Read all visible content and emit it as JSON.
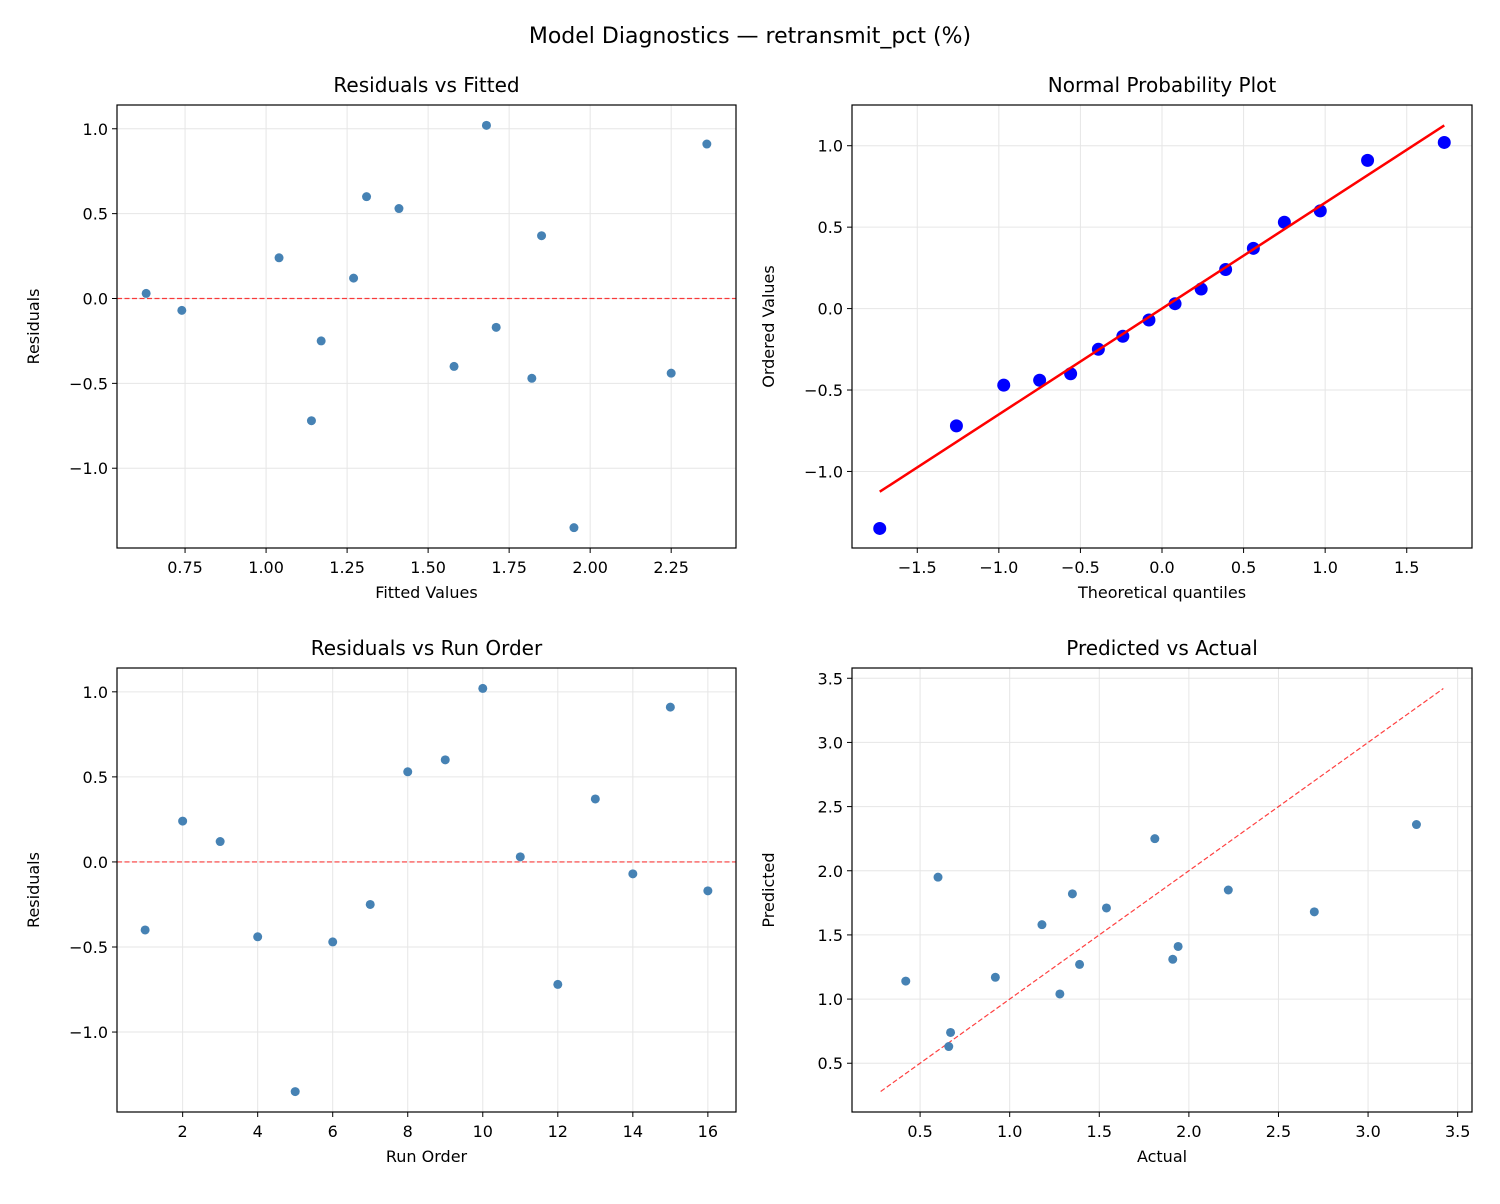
{
  "figure_title": "Model Diagnostics — retransmit_pct (%)",
  "chart_data": [
    {
      "id": "resid-fitted",
      "type": "scatter",
      "title": "Residuals vs Fitted",
      "xlabel": "Fitted Values",
      "ylabel": "Residuals",
      "xlim": [
        0.54,
        2.45
      ],
      "ylim": [
        -1.47,
        1.14
      ],
      "xticks": [
        0.75,
        1.0,
        1.25,
        1.5,
        1.75,
        2.0,
        2.25
      ],
      "xtick_labels": [
        "0.75",
        "1.00",
        "1.25",
        "1.50",
        "1.75",
        "2.00",
        "2.25"
      ],
      "yticks": [
        -1.0,
        -0.5,
        0.0,
        0.5,
        1.0
      ],
      "ytick_labels": [
        "−1.0",
        "−0.5",
        "0.0",
        "0.5",
        "1.0"
      ],
      "grid": true,
      "x": [
        1.58,
        1.04,
        1.27,
        2.25,
        1.95,
        1.82,
        1.17,
        1.41,
        1.31,
        1.68,
        0.63,
        1.14,
        1.85,
        0.74,
        2.36,
        1.71
      ],
      "y": [
        -0.4,
        0.24,
        0.12,
        -0.44,
        -1.35,
        -0.47,
        -0.25,
        0.53,
        0.6,
        1.02,
        0.03,
        -0.72,
        0.37,
        -0.07,
        0.91,
        -0.17
      ],
      "point_color": "#4682b4",
      "reference_line": {
        "kind": "horizontal",
        "y": 0,
        "style": "dashed",
        "color": "#ff0000"
      }
    },
    {
      "id": "normal-prob",
      "type": "scatter",
      "title": "Normal Probability Plot",
      "xlabel": "Theoretical quantiles",
      "ylabel": "Ordered Values",
      "xlim": [
        -1.9,
        1.9
      ],
      "ylim": [
        -1.47,
        1.25
      ],
      "xticks": [
        -1.5,
        -1.0,
        -0.5,
        0.0,
        0.5,
        1.0,
        1.5
      ],
      "xtick_labels": [
        "−1.5",
        "−1.0",
        "−0.5",
        "0.0",
        "0.5",
        "1.0",
        "1.5"
      ],
      "yticks": [
        -1.0,
        -0.5,
        0.0,
        0.5,
        1.0
      ],
      "ytick_labels": [
        "−1.0",
        "−0.5",
        "0.0",
        "0.5",
        "1.0"
      ],
      "grid": true,
      "x": [
        -1.73,
        -1.26,
        -0.97,
        -0.75,
        -0.56,
        -0.39,
        -0.24,
        -0.08,
        0.08,
        0.24,
        0.39,
        0.56,
        0.75,
        0.97,
        1.26,
        1.73
      ],
      "y": [
        -1.35,
        -0.72,
        -0.47,
        -0.44,
        -0.4,
        -0.25,
        -0.17,
        -0.07,
        0.03,
        0.12,
        0.24,
        0.37,
        0.53,
        0.6,
        0.91,
        1.02
      ],
      "point_color": "#0000ff",
      "reference_line": {
        "kind": "fit",
        "slope": 0.65,
        "intercept": 0.0,
        "x_range": [
          -1.73,
          1.73
        ],
        "style": "solid",
        "color": "#ff0000"
      }
    },
    {
      "id": "resid-order",
      "type": "scatter",
      "title": "Residuals vs Run Order",
      "xlabel": "Run Order",
      "ylabel": "Residuals",
      "xlim": [
        0.25,
        16.75
      ],
      "ylim": [
        -1.47,
        1.14
      ],
      "xticks": [
        2,
        4,
        6,
        8,
        10,
        12,
        14,
        16
      ],
      "xtick_labels": [
        "2",
        "4",
        "6",
        "8",
        "10",
        "12",
        "14",
        "16"
      ],
      "yticks": [
        -1.0,
        -0.5,
        0.0,
        0.5,
        1.0
      ],
      "ytick_labels": [
        "−1.0",
        "−0.5",
        "0.0",
        "0.5",
        "1.0"
      ],
      "grid": true,
      "x": [
        1,
        2,
        3,
        4,
        5,
        6,
        7,
        8,
        9,
        10,
        11,
        12,
        13,
        14,
        15,
        16
      ],
      "y": [
        -0.4,
        0.24,
        0.12,
        -0.44,
        -1.35,
        -0.47,
        -0.25,
        0.53,
        0.6,
        1.02,
        0.03,
        -0.72,
        0.37,
        -0.07,
        0.91,
        -0.17
      ],
      "point_color": "#4682b4",
      "reference_line": {
        "kind": "horizontal",
        "y": 0,
        "style": "dashed",
        "color": "#ff0000"
      }
    },
    {
      "id": "pred-actual",
      "type": "scatter",
      "title": "Predicted vs Actual",
      "xlabel": "Actual",
      "ylabel": "Predicted",
      "xlim": [
        0.12,
        3.58
      ],
      "ylim": [
        0.12,
        3.58
      ],
      "xticks": [
        0.5,
        1.0,
        1.5,
        2.0,
        2.5,
        3.0,
        3.5
      ],
      "xtick_labels": [
        "0.5",
        "1.0",
        "1.5",
        "2.0",
        "2.5",
        "3.0",
        "3.5"
      ],
      "yticks": [
        0.5,
        1.0,
        1.5,
        2.0,
        2.5,
        3.0,
        3.5
      ],
      "ytick_labels": [
        "0.5",
        "1.0",
        "1.5",
        "2.0",
        "2.5",
        "3.0",
        "3.5"
      ],
      "grid": true,
      "x": [
        1.18,
        1.28,
        1.39,
        1.81,
        0.6,
        1.35,
        0.92,
        1.94,
        1.91,
        2.7,
        0.66,
        0.42,
        2.22,
        0.67,
        3.27,
        1.54
      ],
      "y": [
        1.58,
        1.04,
        1.27,
        2.25,
        1.95,
        1.82,
        1.17,
        1.41,
        1.31,
        1.68,
        0.63,
        1.14,
        1.85,
        0.74,
        2.36,
        1.71
      ],
      "point_color": "#4682b4",
      "reference_line": {
        "kind": "identity",
        "x_range": [
          0.28,
          3.42
        ],
        "style": "dashed",
        "color": "#ff0000"
      }
    }
  ]
}
